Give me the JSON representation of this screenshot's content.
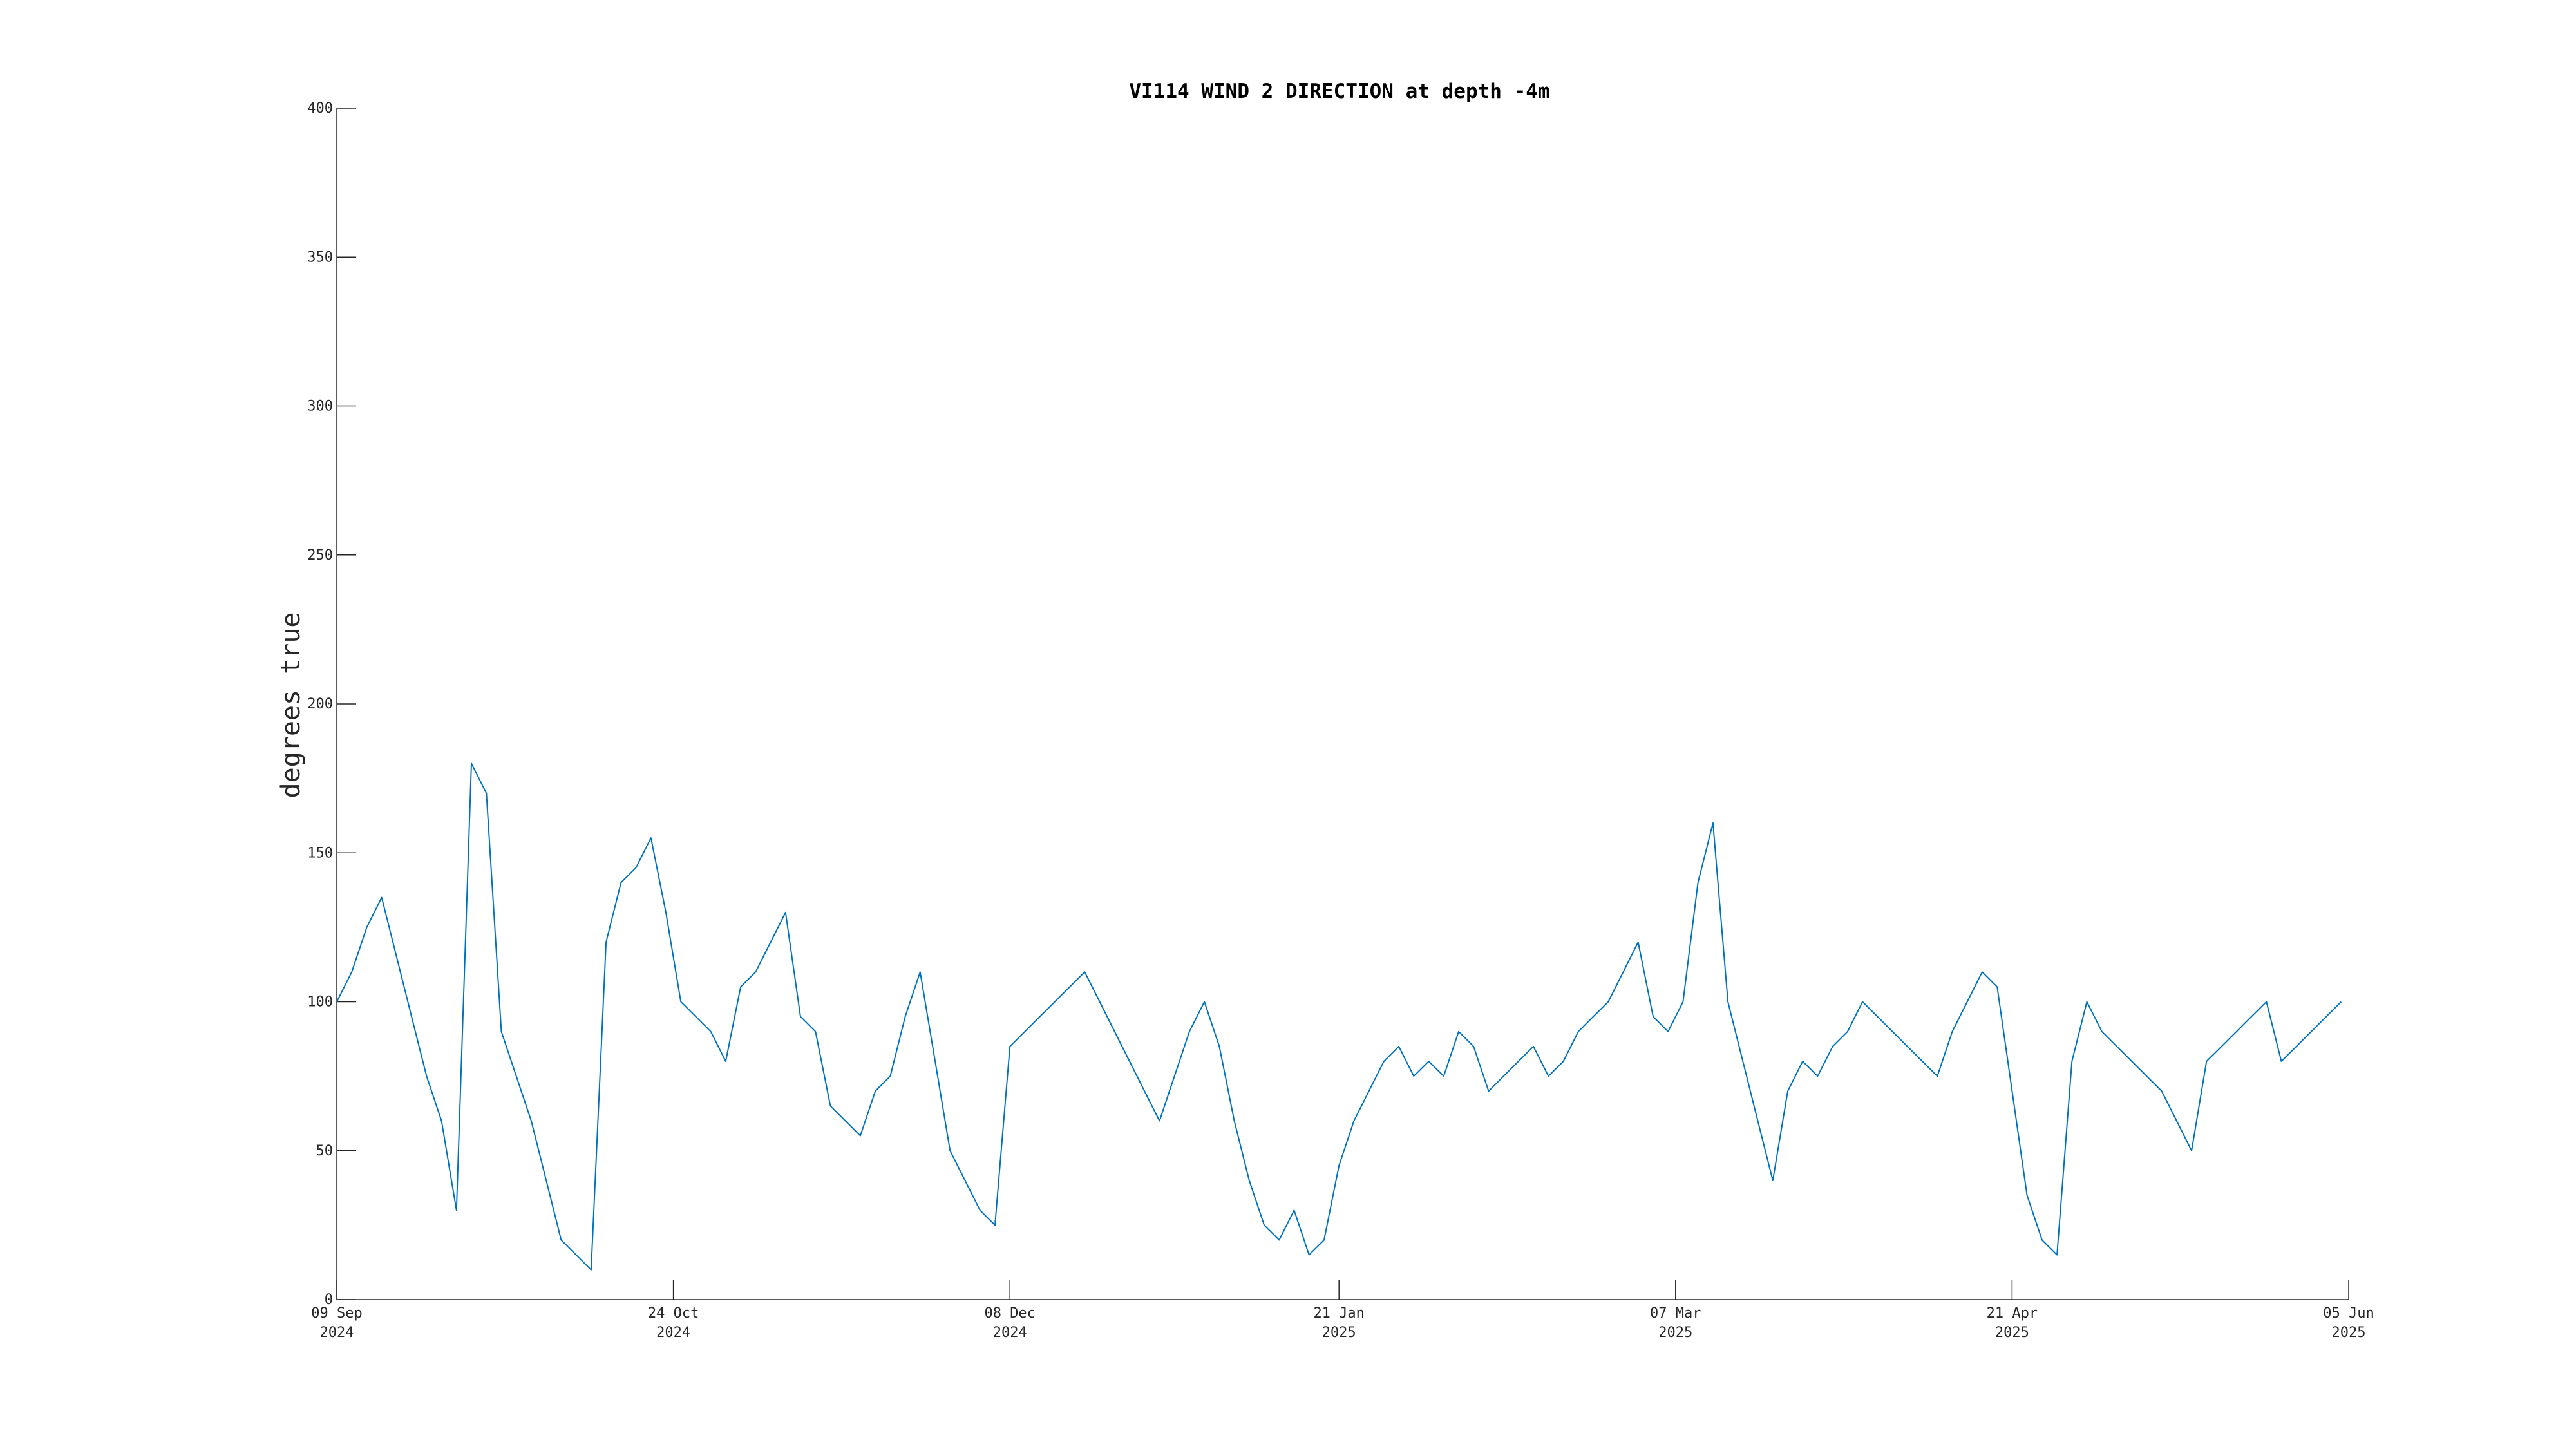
{
  "chart_data": {
    "type": "line",
    "title": "VI114 WIND 2 DIRECTION at depth -4m",
    "xlabel": "",
    "ylabel": "degrees true",
    "ylim": [
      0,
      400
    ],
    "xlim": [
      "2024-09-09",
      "2025-06-05"
    ],
    "grid": false,
    "line_color": "#0072BD",
    "y_ticks": [
      {
        "value": 0,
        "label": "0"
      },
      {
        "value": 50,
        "label": "50"
      },
      {
        "value": 100,
        "label": "100"
      },
      {
        "value": 150,
        "label": "150"
      },
      {
        "value": 200,
        "label": "200"
      },
      {
        "value": 250,
        "label": "250"
      },
      {
        "value": 300,
        "label": "300"
      },
      {
        "value": 350,
        "label": "350"
      },
      {
        "value": 400,
        "label": "400"
      }
    ],
    "x_ticks": [
      {
        "value": "2024-09-09",
        "label": "09 Sep",
        "year": "2024"
      },
      {
        "value": "2024-10-24",
        "label": "24 Oct",
        "year": "2024"
      },
      {
        "value": "2024-12-08",
        "label": "08 Dec",
        "year": "2024"
      },
      {
        "value": "2025-01-21",
        "label": "21 Jan",
        "year": "2025"
      },
      {
        "value": "2025-03-07",
        "label": "07 Mar",
        "year": "2025"
      },
      {
        "value": "2025-04-21",
        "label": "21 Apr",
        "year": "2025"
      },
      {
        "value": "2025-06-05",
        "label": "05 Jun",
        "year": "2025"
      }
    ],
    "series": [
      {
        "x": [
          "2024-09-09",
          "2024-09-11",
          "2024-09-13",
          "2024-09-15",
          "2024-09-17",
          "2024-09-19",
          "2024-09-21",
          "2024-09-23",
          "2024-09-25",
          "2024-09-27",
          "2024-09-29",
          "2024-10-01",
          "2024-10-03",
          "2024-10-05",
          "2024-10-07",
          "2024-10-09",
          "2024-10-11",
          "2024-10-13",
          "2024-10-15",
          "2024-10-17",
          "2024-10-19",
          "2024-10-21",
          "2024-10-23",
          "2024-10-25",
          "2024-10-27",
          "2024-10-29",
          "2024-10-31",
          "2024-11-02",
          "2024-11-04",
          "2024-11-06",
          "2024-11-08",
          "2024-11-10",
          "2024-11-12",
          "2024-11-14",
          "2024-11-16",
          "2024-11-18",
          "2024-11-20",
          "2024-11-22",
          "2024-11-24",
          "2024-11-26",
          "2024-11-28",
          "2024-11-30",
          "2024-12-02",
          "2024-12-04",
          "2024-12-06",
          "2024-12-08",
          "2024-12-10",
          "2024-12-12",
          "2024-12-14",
          "2024-12-16",
          "2024-12-18",
          "2024-12-20",
          "2024-12-22",
          "2024-12-24",
          "2024-12-26",
          "2024-12-28",
          "2024-12-30",
          "2025-01-01",
          "2025-01-03",
          "2025-01-05",
          "2025-01-07",
          "2025-01-09",
          "2025-01-11",
          "2025-01-13",
          "2025-01-15",
          "2025-01-17",
          "2025-01-19",
          "2025-01-21",
          "2025-01-23",
          "2025-01-25",
          "2025-01-27",
          "2025-01-29",
          "2025-01-31",
          "2025-02-02",
          "2025-02-04",
          "2025-02-06",
          "2025-02-08",
          "2025-02-10",
          "2025-02-12",
          "2025-02-14",
          "2025-02-16",
          "2025-02-18",
          "2025-02-20",
          "2025-02-22",
          "2025-02-24",
          "2025-02-26",
          "2025-02-28",
          "2025-03-02",
          "2025-03-04",
          "2025-03-06",
          "2025-03-08",
          "2025-03-10",
          "2025-03-12",
          "2025-03-14",
          "2025-03-16",
          "2025-03-18",
          "2025-03-20",
          "2025-03-22",
          "2025-03-24",
          "2025-03-26",
          "2025-03-28",
          "2025-03-30",
          "2025-04-01",
          "2025-04-03",
          "2025-04-05",
          "2025-04-07",
          "2025-04-09",
          "2025-04-11",
          "2025-04-13",
          "2025-04-15",
          "2025-04-17",
          "2025-04-19",
          "2025-04-21",
          "2025-04-23",
          "2025-04-25",
          "2025-04-27",
          "2025-04-29",
          "2025-05-01",
          "2025-05-03",
          "2025-05-05",
          "2025-05-07",
          "2025-05-09",
          "2025-05-11",
          "2025-05-13",
          "2025-05-15",
          "2025-05-17",
          "2025-05-19",
          "2025-05-21",
          "2025-05-23",
          "2025-05-25",
          "2025-05-27",
          "2025-05-29",
          "2025-05-31",
          "2025-06-02",
          "2025-06-04"
        ],
        "y": [
          100,
          110,
          125,
          135,
          115,
          95,
          75,
          60,
          30,
          180,
          170,
          90,
          75,
          60,
          40,
          20,
          15,
          10,
          120,
          140,
          145,
          155,
          130,
          100,
          95,
          90,
          80,
          105,
          110,
          120,
          130,
          95,
          90,
          65,
          60,
          55,
          70,
          75,
          95,
          110,
          80,
          50,
          40,
          30,
          25,
          85,
          90,
          95,
          100,
          105,
          110,
          100,
          90,
          80,
          70,
          60,
          75,
          90,
          100,
          85,
          60,
          40,
          25,
          20,
          30,
          15,
          20,
          45,
          60,
          70,
          80,
          85,
          75,
          80,
          75,
          90,
          85,
          70,
          75,
          80,
          85,
          75,
          80,
          90,
          95,
          100,
          110,
          120,
          95,
          90,
          100,
          140,
          160,
          100,
          80,
          60,
          40,
          70,
          80,
          75,
          85,
          90,
          100,
          95,
          90,
          85,
          80,
          75,
          90,
          100,
          110,
          105,
          70,
          35,
          20,
          15,
          80,
          100,
          90,
          85,
          80,
          75,
          70,
          60,
          50,
          80,
          85,
          90,
          95,
          100,
          80,
          85,
          90,
          95,
          100
        ]
      }
    ]
  }
}
